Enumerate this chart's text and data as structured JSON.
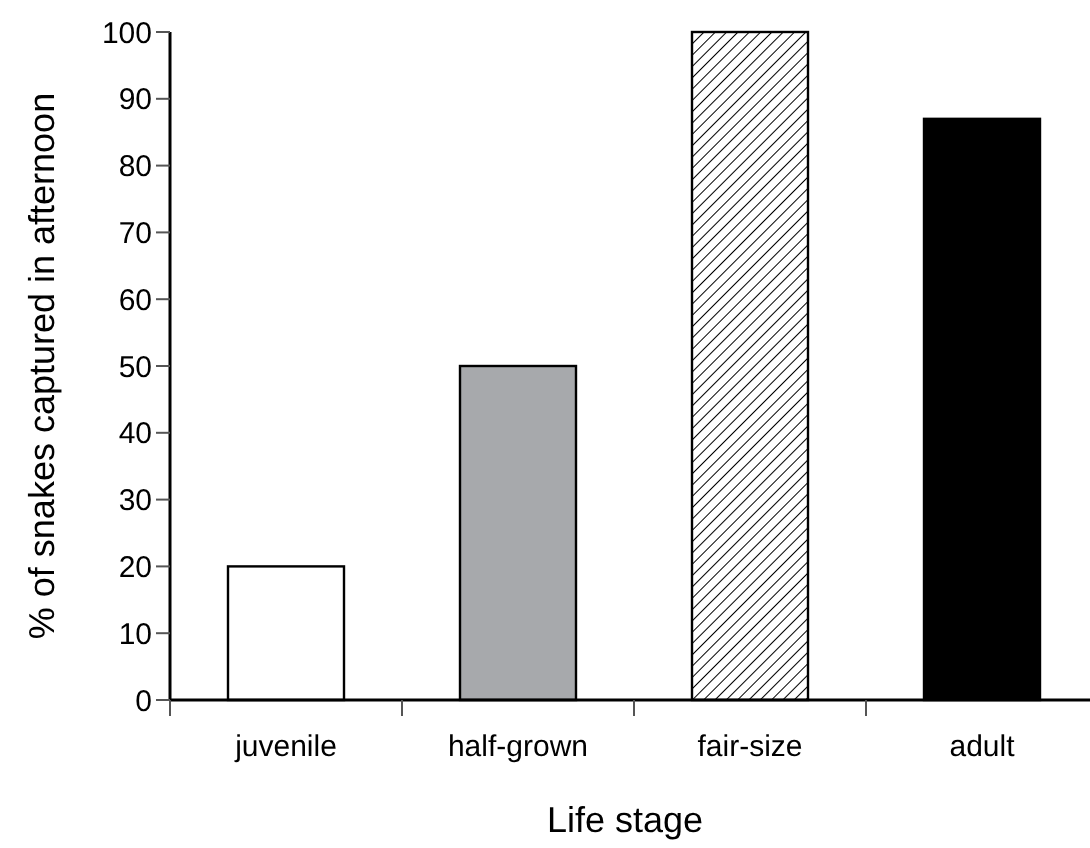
{
  "chart_data": {
    "type": "bar",
    "xlabel": "Life stage",
    "ylabel": "% of snakes captured in afternoon",
    "categories": [
      "juvenile",
      "half-grown",
      "fair-size",
      "adult"
    ],
    "values": [
      20,
      50,
      100,
      87
    ],
    "colors": [
      "#ffffff",
      "#a7a9ac",
      "#000000",
      "#000000"
    ],
    "ylim": [
      0,
      100
    ],
    "yticks": [
      0,
      10,
      20,
      30,
      40,
      50,
      60,
      70,
      80,
      90,
      100
    ],
    "grid": false
  }
}
